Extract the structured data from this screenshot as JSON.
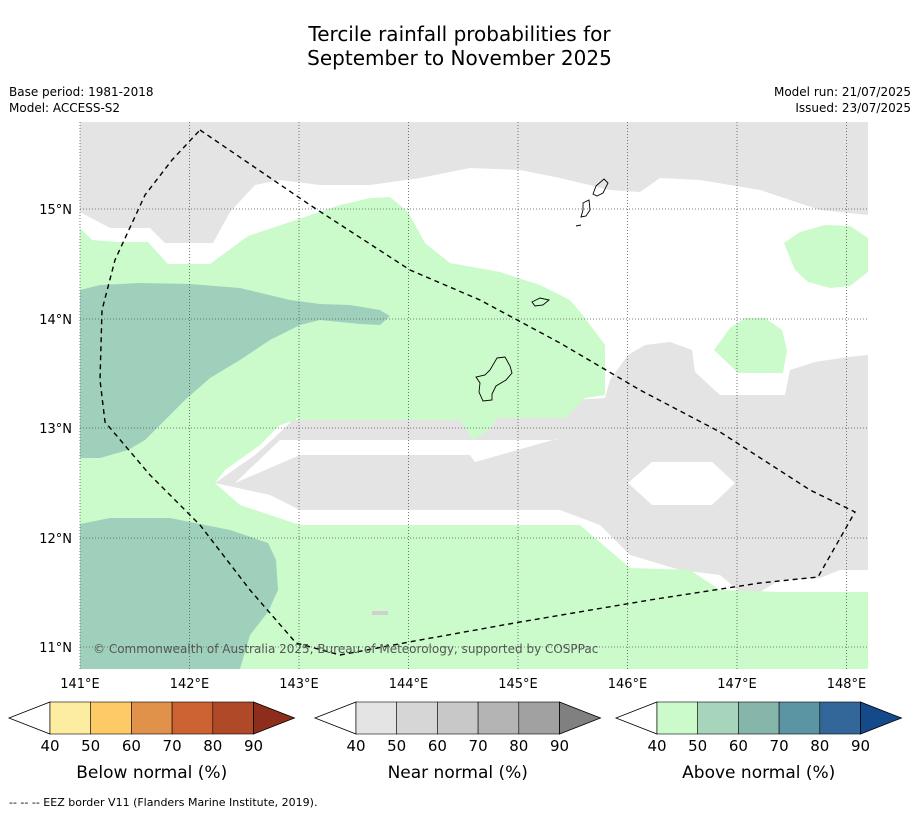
{
  "title_line1": "Tercile rainfall probabilities for",
  "title_line2": "September to November 2025",
  "meta_left": {
    "base_period": "Base period: 1981-2018",
    "model": "Model: ACCESS-S2"
  },
  "meta_right": {
    "model_run": "Model run: 21/07/2025",
    "issued": "Issued: 23/07/2025"
  },
  "copyright": "© Commonwealth of Australia 2025, Bureau of Meteorology, supported by COSPPac",
  "footnote": "--  --  -- EEZ border V11 (Flanders Marine Institute, 2019).",
  "lon_labels": [
    "141°E",
    "142°E",
    "143°E",
    "144°E",
    "145°E",
    "146°E",
    "147°E",
    "148°E"
  ],
  "lat_labels": [
    "15°N",
    "14°N",
    "13°N",
    "12°N",
    "11°N"
  ],
  "colorbars": [
    {
      "label": "Below normal (%)",
      "ticks": [
        "40",
        "50",
        "60",
        "70",
        "80",
        "90"
      ],
      "colors": [
        "#ffffff",
        "#fdeda0",
        "#fdca66",
        "#e0924a",
        "#cd6232",
        "#b04927",
        "#8d2e1c"
      ]
    },
    {
      "label": "Near normal (%)",
      "ticks": [
        "40",
        "50",
        "60",
        "70",
        "80",
        "90"
      ],
      "colors": [
        "#ffffff",
        "#e4e4e4",
        "#d6d6d6",
        "#c8c8c8",
        "#b4b4b4",
        "#a1a1a1",
        "#808080"
      ]
    },
    {
      "label": "Above normal (%)",
      "ticks": [
        "40",
        "50",
        "60",
        "70",
        "80",
        "90"
      ],
      "colors": [
        "#ffffff",
        "#cbfbcb",
        "#a6d5bc",
        "#85b6a9",
        "#5b95a4",
        "#336699",
        "#144a8a"
      ]
    }
  ],
  "colors": {
    "near_normal_fill": "#e4e4e4",
    "above_50_fill": "#cbfbcb",
    "above_60_fill": "#9fd0bc"
  }
}
